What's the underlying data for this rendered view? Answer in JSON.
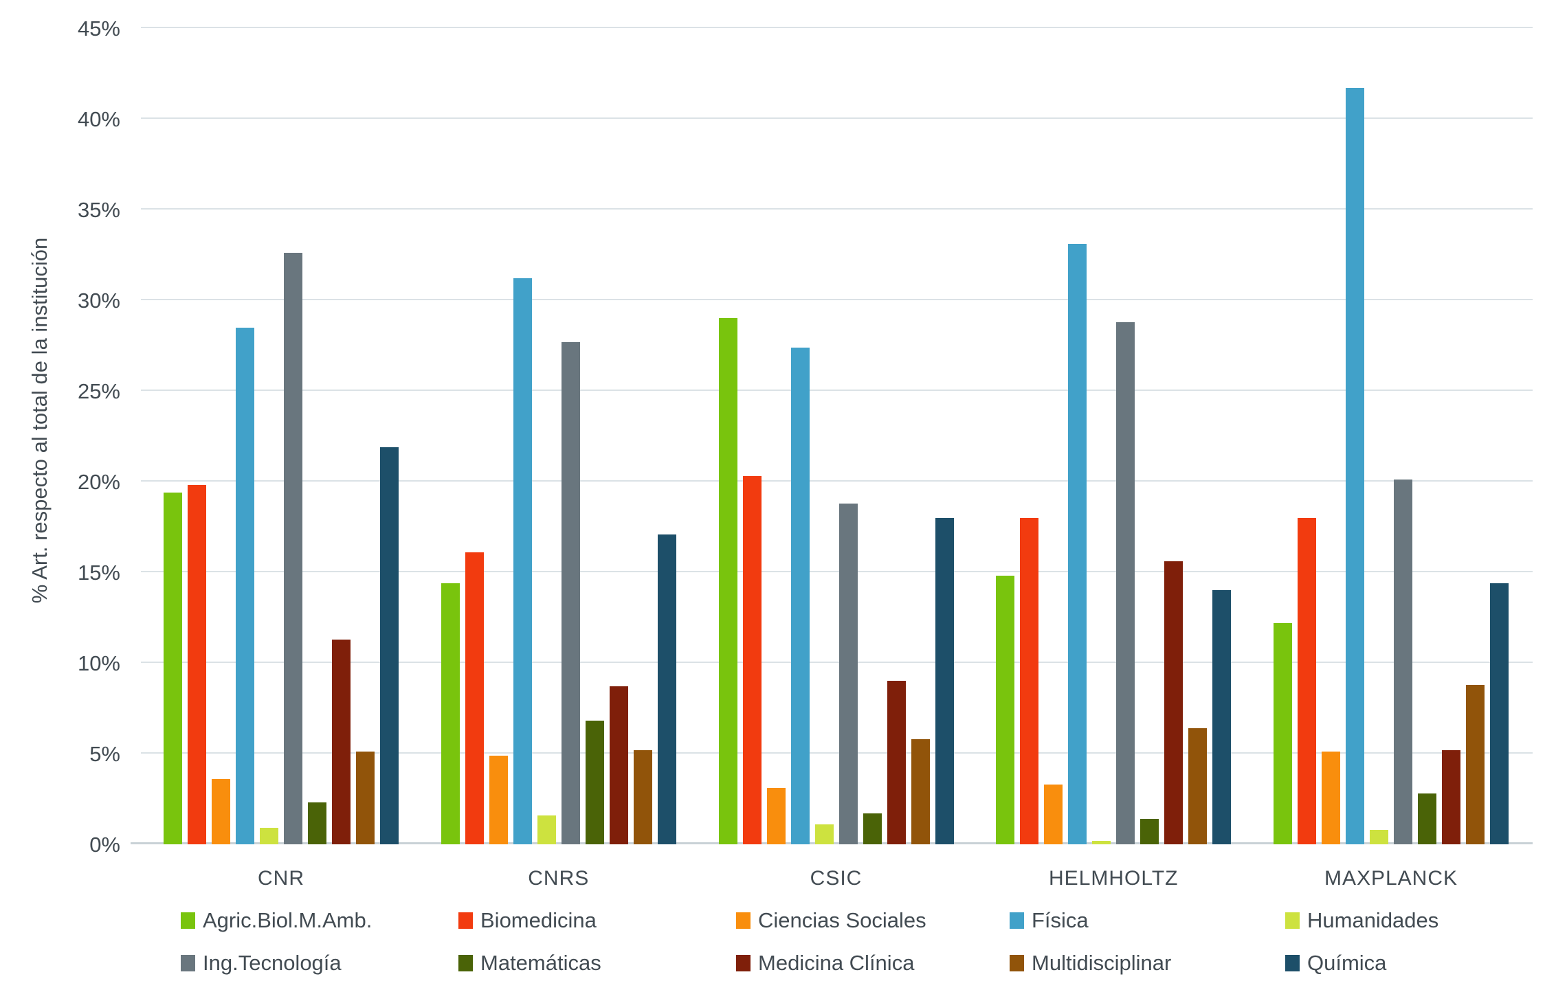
{
  "chart_data": {
    "type": "bar",
    "title": "",
    "xlabel": "",
    "ylabel": "% Art. respecto al total de la institución",
    "ylim": [
      0,
      45
    ],
    "ytick_step": 5,
    "ytick_labels": [
      "0%",
      "5%",
      "10%",
      "15%",
      "20%",
      "25%",
      "30%",
      "35%",
      "40%",
      "45%"
    ],
    "grid": true,
    "legend_position": "bottom",
    "categories": [
      "CNR",
      "CNRS",
      "CSIC",
      "HELMHOLTZ",
      "MAXPLANCK"
    ],
    "series": [
      {
        "name": "Agric.Biol.M.Amb.",
        "color": "#79C40D",
        "values": [
          19.4,
          14.4,
          29.0,
          14.8,
          12.2
        ]
      },
      {
        "name": "Biomedicina",
        "color": "#F23B0F",
        "values": [
          19.8,
          16.1,
          20.3,
          18.0,
          18.0
        ]
      },
      {
        "name": "Ciencias Sociales",
        "color": "#F98E0D",
        "values": [
          3.6,
          4.9,
          3.1,
          3.3,
          5.1
        ]
      },
      {
        "name": "Física",
        "color": "#41A1C9",
        "values": [
          28.5,
          31.2,
          27.4,
          33.1,
          41.7
        ]
      },
      {
        "name": "Humanidades",
        "color": "#CDE23F",
        "values": [
          0.9,
          1.6,
          1.1,
          0.2,
          0.8
        ]
      },
      {
        "name": "Ing.Tecnología",
        "color": "#69767E",
        "values": [
          32.6,
          27.7,
          18.8,
          28.8,
          20.1
        ]
      },
      {
        "name": "Matemáticas",
        "color": "#4A6307",
        "values": [
          2.3,
          6.8,
          1.7,
          1.4,
          2.8
        ]
      },
      {
        "name": "Medicina Clínica",
        "color": "#7F1F0A",
        "values": [
          11.3,
          8.7,
          9.0,
          15.6,
          5.2
        ]
      },
      {
        "name": "Multidisciplinar",
        "color": "#91540A",
        "values": [
          5.1,
          5.2,
          5.8,
          6.4,
          8.8
        ]
      },
      {
        "name": "Química",
        "color": "#1D4F69",
        "values": [
          21.9,
          17.1,
          18.0,
          14.0,
          14.4
        ]
      }
    ],
    "styles": {
      "gridline_color": "#dbe2e6",
      "axis_line_color": "#c9d2d6",
      "text_color": "#424b52",
      "background": "#ffffff"
    }
  }
}
